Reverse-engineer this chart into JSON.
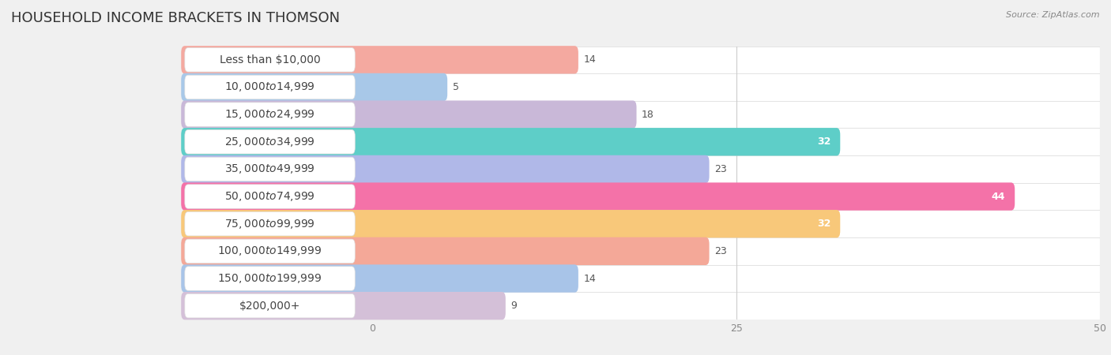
{
  "title": "HOUSEHOLD INCOME BRACKETS IN THOMSON",
  "source": "Source: ZipAtlas.com",
  "categories": [
    "Less than $10,000",
    "$10,000 to $14,999",
    "$15,000 to $24,999",
    "$25,000 to $34,999",
    "$35,000 to $49,999",
    "$50,000 to $74,999",
    "$75,000 to $99,999",
    "$100,000 to $149,999",
    "$150,000 to $199,999",
    "$200,000+"
  ],
  "values": [
    14,
    5,
    18,
    32,
    23,
    44,
    32,
    23,
    14,
    9
  ],
  "bar_colors": [
    "#F4A9A0",
    "#A8C8E8",
    "#C9B8D8",
    "#5ECEC8",
    "#B0B8E8",
    "#F472A8",
    "#F8C87A",
    "#F4A898",
    "#A8C4E8",
    "#D4C0D8"
  ],
  "xlim": [
    0,
    50
  ],
  "xticks": [
    0,
    25,
    50
  ],
  "background_color": "#f0f0f0",
  "row_background_color": "#ffffff",
  "title_fontsize": 13,
  "label_fontsize": 10,
  "value_fontsize": 9,
  "bar_height": 0.72
}
